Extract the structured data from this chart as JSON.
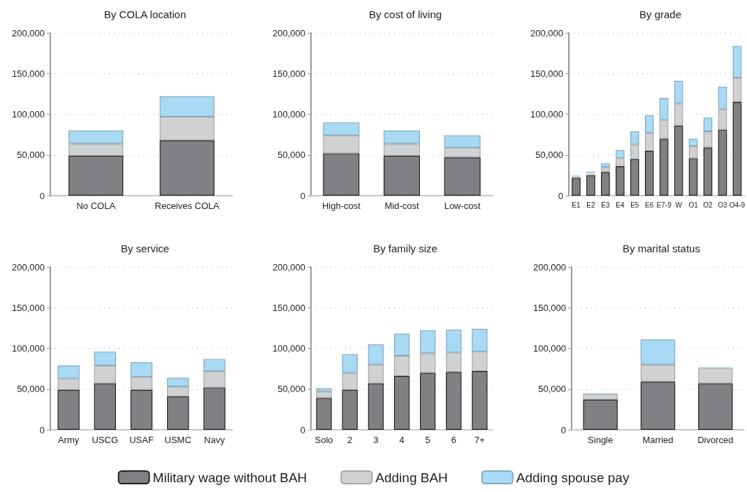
{
  "chart_data": [
    {
      "type": "bar",
      "title": "By COLA location",
      "stacked": true,
      "categories": [
        "No COLA",
        "Receives COLA"
      ],
      "ylim": [
        0,
        200000
      ],
      "yticks": [
        {
          "value": 0,
          "label": "0"
        },
        {
          "value": 50000,
          "label": "50,000"
        },
        {
          "value": 100000,
          "label": "100,000"
        },
        {
          "value": 150000,
          "label": "150,000"
        },
        {
          "value": 200000,
          "label": "200,000"
        }
      ],
      "grid": "y",
      "legend": false,
      "series": [
        {
          "color": "#808184",
          "values": [
            49000,
            68000
          ]
        },
        {
          "color": "#d0d1d3",
          "values": [
            15000,
            29000
          ]
        },
        {
          "color": "#a8daf5",
          "values": [
            16000,
            25000
          ]
        }
      ]
    },
    {
      "type": "bar",
      "title": "By cost of living",
      "stacked": true,
      "categories": [
        "High-cost",
        "Mid-cost",
        "Low-cost"
      ],
      "ylim": [
        0,
        200000
      ],
      "yticks": [
        {
          "value": 0,
          "label": "0"
        },
        {
          "value": 50000,
          "label": "50,000"
        },
        {
          "value": 100000,
          "label": "100,000"
        },
        {
          "value": 150000,
          "label": "150,000"
        },
        {
          "value": 200000,
          "label": "200,000"
        }
      ],
      "grid": "y",
      "legend": false,
      "series": [
        {
          "color": "#808184",
          "values": [
            52000,
            49000,
            47000
          ]
        },
        {
          "color": "#d0d1d3",
          "values": [
            22000,
            15000,
            12000
          ]
        },
        {
          "color": "#a8daf5",
          "values": [
            16000,
            16000,
            15000
          ]
        }
      ]
    },
    {
      "type": "bar",
      "title": "By grade",
      "stacked": true,
      "categories": [
        "E1",
        "E2",
        "E3",
        "E4",
        "E5",
        "E6",
        "E7-9",
        "W",
        "O1",
        "O2",
        "O3",
        "O4-9"
      ],
      "ylim": [
        0,
        200000
      ],
      "yticks": [
        {
          "value": 0,
          "label": "0"
        },
        {
          "value": 50000,
          "label": "50,000"
        },
        {
          "value": 100000,
          "label": "100,000"
        },
        {
          "value": 150000,
          "label": "150,000"
        },
        {
          "value": 200000,
          "label": "200,000"
        }
      ],
      "grid": "y",
      "legend": false,
      "series": [
        {
          "color": "#808184",
          "values": [
            22000,
            25000,
            29000,
            36000,
            45000,
            55000,
            70000,
            86000,
            46000,
            59000,
            81000,
            115000
          ]
        },
        {
          "color": "#d0d1d3",
          "values": [
            2000,
            3000,
            6000,
            10000,
            18000,
            22000,
            23000,
            27000,
            15000,
            20000,
            25000,
            30000
          ]
        },
        {
          "color": "#a8daf5",
          "values": [
            1000,
            2000,
            5000,
            10000,
            16000,
            22000,
            27000,
            28000,
            9000,
            17000,
            28000,
            39000
          ]
        }
      ]
    },
    {
      "type": "bar",
      "title": "By service",
      "stacked": true,
      "categories": [
        "Army",
        "USCG",
        "USAF",
        "USMC",
        "Navy"
      ],
      "ylim": [
        0,
        200000
      ],
      "yticks": [
        {
          "value": 0,
          "label": "0"
        },
        {
          "value": 50000,
          "label": "50,000"
        },
        {
          "value": 100000,
          "label": "100,000"
        },
        {
          "value": 150000,
          "label": "150,000"
        },
        {
          "value": 200000,
          "label": "200,000"
        }
      ],
      "grid": "y",
      "legend": false,
      "series": [
        {
          "color": "#808184",
          "values": [
            49000,
            57000,
            49000,
            41000,
            52000
          ]
        },
        {
          "color": "#d0d1d3",
          "values": [
            14000,
            22000,
            16000,
            12000,
            20000
          ]
        },
        {
          "color": "#a8daf5",
          "values": [
            16000,
            17000,
            18000,
            11000,
            15000
          ]
        }
      ]
    },
    {
      "type": "bar",
      "title": "By family size",
      "stacked": true,
      "categories": [
        "Solo",
        "2",
        "3",
        "4",
        "5",
        "6",
        "7+"
      ],
      "ylim": [
        0,
        200000
      ],
      "yticks": [
        {
          "value": 0,
          "label": "0"
        },
        {
          "value": 50000,
          "label": "50,000"
        },
        {
          "value": 100000,
          "label": "100,000"
        },
        {
          "value": 150000,
          "label": "150,000"
        },
        {
          "value": 200000,
          "label": "200,000"
        }
      ],
      "grid": "y",
      "legend": false,
      "series": [
        {
          "color": "#808184",
          "values": [
            39000,
            49000,
            57000,
            66000,
            70000,
            71000,
            72000
          ]
        },
        {
          "color": "#d0d1d3",
          "values": [
            8000,
            21000,
            23000,
            25000,
            24000,
            24000,
            24000
          ]
        },
        {
          "color": "#a8daf5",
          "values": [
            4000,
            23000,
            25000,
            27000,
            28000,
            28000,
            28000
          ]
        }
      ]
    },
    {
      "type": "bar",
      "title": "By marital status",
      "stacked": true,
      "categories": [
        "Single",
        "Married",
        "Divorced"
      ],
      "ylim": [
        0,
        200000
      ],
      "yticks": [
        {
          "value": 0,
          "label": "0"
        },
        {
          "value": 50000,
          "label": "50,000"
        },
        {
          "value": 100000,
          "label": "100,000"
        },
        {
          "value": 150000,
          "label": "150,000"
        },
        {
          "value": 200000,
          "label": "200,000"
        }
      ],
      "grid": "y",
      "legend": "bottom",
      "series": [
        {
          "name": "Military wage without BAH",
          "color": "#808184",
          "values": [
            37000,
            59000,
            57000
          ]
        },
        {
          "name": "Adding BAH",
          "color": "#d0d1d3",
          "values": [
            7000,
            21000,
            19000
          ]
        },
        {
          "name": "Adding spouse pay",
          "color": "#a8daf5",
          "values": [
            1000,
            31000,
            1000
          ]
        }
      ]
    }
  ]
}
